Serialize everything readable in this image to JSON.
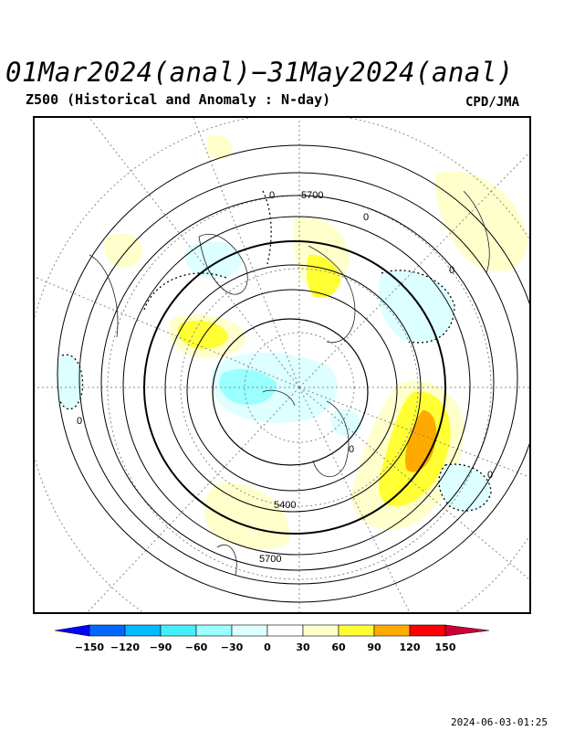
{
  "header": {
    "title": "01Mar2024(anal)−31May2024(anal)",
    "subtitle": "Z500 (Historical and Anomaly : N-day)",
    "credit": "CPD/JMA"
  },
  "map": {
    "contour_labels": [
      "5700",
      "5400",
      "5700",
      "0",
      "0",
      "0",
      "0",
      "0",
      "0"
    ],
    "colors": {
      "pos30": "#ffffcc",
      "pos60": "#ffff33",
      "pos90": "#ffaa00",
      "neg30": "#ddffff",
      "neg60": "#99ffff"
    }
  },
  "legend": {
    "ticks": [
      "−150",
      "−120",
      "−90",
      "−60",
      "−30",
      "0",
      "30",
      "60",
      "90",
      "120",
      "150"
    ],
    "colors": [
      "#0000ff",
      "#0066ff",
      "#00bbff",
      "#44eeff",
      "#99ffff",
      "#ddffff",
      "#ffffff",
      "#ffffcc",
      "#ffff33",
      "#ffaa00",
      "#ff0000",
      "#cc0033"
    ]
  },
  "footer": {
    "timestamp": "2024-06-03-01:25"
  }
}
